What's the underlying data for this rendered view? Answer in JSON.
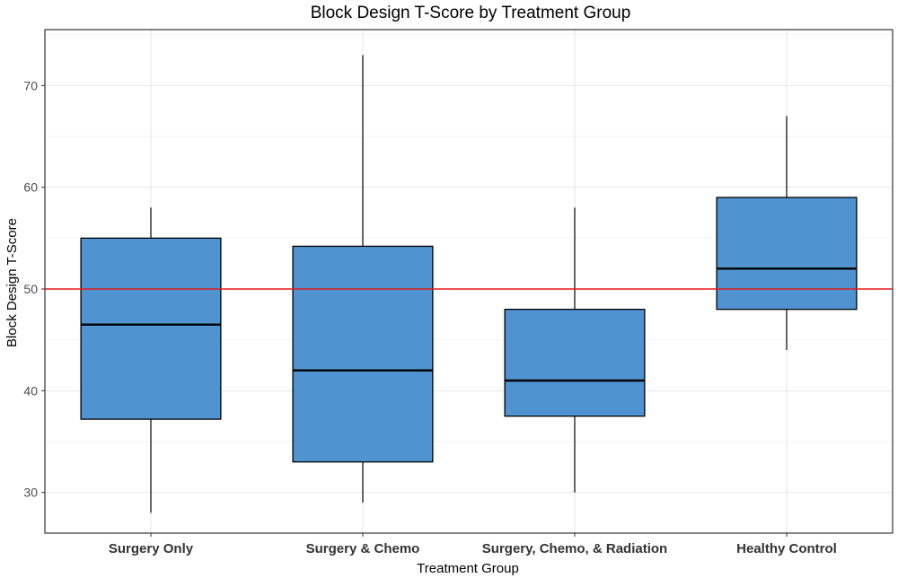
{
  "chart_data": {
    "type": "box",
    "title": "Block Design T-Score by Treatment Group",
    "xlabel": "Treatment Group",
    "ylabel": "Block Design T-Score",
    "ylim": [
      26,
      75.5
    ],
    "yticks": [
      30,
      40,
      50,
      60,
      70
    ],
    "grid": true,
    "reference_line": {
      "y": 50,
      "color": "#e31a1c"
    },
    "box_color": "#4f94d0",
    "categories": [
      "Surgery Only",
      "Surgery & Chemo",
      "Surgery, Chemo, & Radiation",
      "Healthy Control"
    ],
    "boxes": [
      {
        "category": "Surgery Only",
        "min": 28,
        "q1": 37.2,
        "median": 46.5,
        "q3": 55,
        "max": 58
      },
      {
        "category": "Surgery & Chemo",
        "min": 29,
        "q1": 33,
        "median": 42,
        "q3": 54.2,
        "max": 73
      },
      {
        "category": "Surgery, Chemo, & Radiation",
        "min": 30,
        "q1": 37.5,
        "median": 41,
        "q3": 48,
        "max": 58
      },
      {
        "category": "Healthy Control",
        "min": 44,
        "q1": 48,
        "median": 52,
        "q3": 59,
        "max": 67
      }
    ]
  }
}
